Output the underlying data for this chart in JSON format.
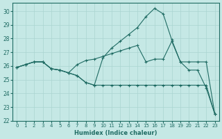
{
  "xlabel": "Humidex (Indice chaleur)",
  "xlim": [
    -0.5,
    23.5
  ],
  "ylim": [
    22,
    30.6
  ],
  "yticks": [
    22,
    23,
    24,
    25,
    26,
    27,
    28,
    29,
    30
  ],
  "xticks": [
    0,
    1,
    2,
    3,
    4,
    5,
    6,
    7,
    8,
    9,
    10,
    11,
    12,
    13,
    14,
    15,
    16,
    17,
    18,
    19,
    20,
    21,
    22,
    23
  ],
  "bg_color": "#c5e8e5",
  "grid_color": "#aad4d0",
  "line_color": "#1f6b63",
  "lines": [
    {
      "x": [
        0,
        1,
        2,
        3,
        4,
        5,
        6,
        7,
        8,
        9,
        10,
        11,
        12,
        13,
        14,
        15,
        16,
        17,
        18,
        19,
        20,
        21,
        22,
        23
      ],
      "y": [
        25.9,
        26.1,
        26.3,
        26.3,
        25.8,
        25.7,
        25.5,
        25.3,
        24.8,
        24.6,
        26.6,
        27.3,
        27.8,
        28.3,
        28.8,
        29.6,
        30.2,
        29.8,
        27.9,
        26.3,
        25.7,
        25.7,
        24.4,
        22.5
      ]
    },
    {
      "x": [
        0,
        1,
        2,
        3,
        4,
        5,
        6,
        7,
        8,
        9,
        10,
        11,
        12,
        13,
        14,
        15,
        16,
        17,
        18,
        19,
        20,
        21,
        22,
        23
      ],
      "y": [
        25.9,
        26.1,
        26.3,
        26.3,
        25.8,
        25.7,
        25.5,
        26.1,
        26.4,
        26.5,
        26.7,
        26.9,
        27.1,
        27.3,
        27.5,
        26.3,
        26.5,
        26.5,
        27.8,
        26.3,
        26.3,
        26.3,
        26.3,
        22.5
      ]
    },
    {
      "x": [
        0,
        1,
        2,
        3,
        4,
        5,
        6,
        7,
        8,
        9,
        10,
        11,
        12,
        13,
        14,
        15,
        16,
        17,
        18,
        19,
        20,
        21,
        22,
        23
      ],
      "y": [
        25.9,
        26.1,
        26.3,
        26.3,
        25.8,
        25.7,
        25.5,
        25.3,
        24.8,
        24.6,
        24.6,
        24.6,
        24.6,
        24.6,
        24.6,
        24.6,
        24.6,
        24.6,
        24.6,
        24.6,
        24.6,
        24.6,
        24.6,
        22.5
      ]
    }
  ]
}
